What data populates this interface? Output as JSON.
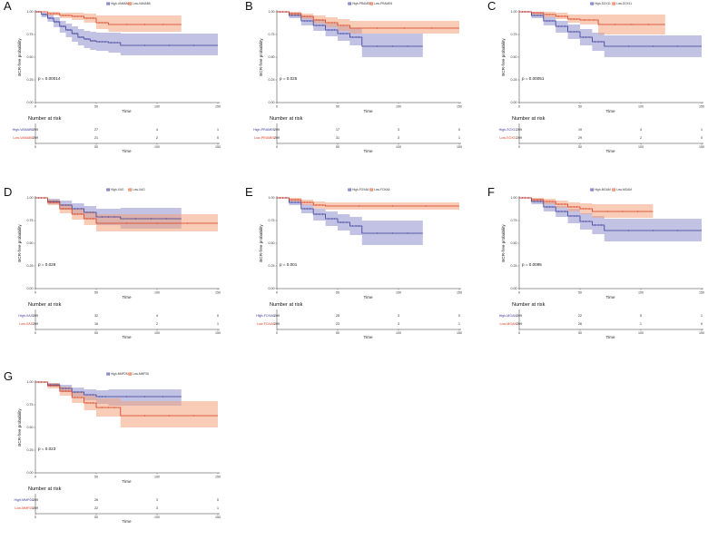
{
  "colors": {
    "high": "#3b3b98",
    "low": "#d93a1e",
    "high_band": "#8f8fce",
    "low_band": "#f2a27c"
  },
  "chart_data": [
    {
      "type": "line",
      "panel": "A",
      "ylabel": "BCR-free probability",
      "xlabel": "Time",
      "xlim": [
        0,
        150
      ],
      "ylim": [
        0,
        1
      ],
      "x_ticks": [
        "0",
        "50",
        "100",
        "150"
      ],
      "y_ticks": [
        "0.00",
        "0.25",
        "0.50",
        "0.75",
        "1.00"
      ],
      "legend": [
        "High-VAMAB6",
        "Low-VAMAB6"
      ],
      "pvalue": "p = 0.00014",
      "series": [
        {
          "name": "High-VAMAB6",
          "group": "high",
          "x": [
            0,
            5,
            10,
            15,
            20,
            25,
            30,
            35,
            40,
            45,
            50,
            60,
            70,
            150
          ],
          "y": [
            1,
            0.97,
            0.93,
            0.89,
            0.84,
            0.8,
            0.76,
            0.72,
            0.7,
            0.68,
            0.67,
            0.66,
            0.63,
            0.63
          ],
          "lower": [
            1,
            0.94,
            0.89,
            0.83,
            0.77,
            0.72,
            0.67,
            0.63,
            0.6,
            0.58,
            0.57,
            0.55,
            0.52,
            0.52
          ],
          "upper": [
            1,
            0.99,
            0.97,
            0.94,
            0.9,
            0.87,
            0.84,
            0.81,
            0.79,
            0.78,
            0.77,
            0.77,
            0.76,
            0.76
          ]
        },
        {
          "name": "Low-VAMAB6",
          "group": "low",
          "x": [
            0,
            10,
            20,
            30,
            40,
            50,
            60,
            120
          ],
          "y": [
            1,
            0.98,
            0.96,
            0.95,
            0.93,
            0.88,
            0.86,
            0.86
          ],
          "lower": [
            1,
            0.96,
            0.93,
            0.91,
            0.88,
            0.81,
            0.78,
            0.78
          ],
          "upper": [
            1,
            1,
            0.99,
            0.99,
            0.98,
            0.96,
            0.96,
            0.96
          ]
        }
      ],
      "risk_table": {
        "title": "Number at risk",
        "rows": [
          {
            "label": "High-VAMAB6",
            "group": "high",
            "values": [
              "209",
              "27",
              "4",
              "1"
            ]
          },
          {
            "label": "Low-VAMAB6",
            "group": "low",
            "values": [
              "209",
              "21",
              "2",
              "0"
            ]
          }
        ],
        "x_ticks": [
          "0",
          "50",
          "100",
          "150"
        ],
        "xlabel": "Time"
      }
    },
    {
      "type": "line",
      "panel": "B",
      "ylabel": "BCR-free probability",
      "xlabel": "Time",
      "xlim": [
        0,
        150
      ],
      "ylim": [
        0,
        1
      ],
      "x_ticks": [
        "0",
        "50",
        "100",
        "150"
      ],
      "y_ticks": [
        "0.00",
        "0.25",
        "0.50",
        "0.75",
        "1.00"
      ],
      "legend": [
        "High-PRAME6",
        "Low-PRAME6"
      ],
      "pvalue": "p = 0.025",
      "series": [
        {
          "name": "High-PRAME6",
          "group": "high",
          "x": [
            0,
            10,
            20,
            30,
            40,
            50,
            60,
            70,
            120
          ],
          "y": [
            1,
            0.96,
            0.9,
            0.85,
            0.8,
            0.76,
            0.72,
            0.62,
            0.62
          ],
          "lower": [
            1,
            0.93,
            0.85,
            0.79,
            0.73,
            0.68,
            0.63,
            0.5,
            0.5
          ],
          "upper": [
            1,
            0.99,
            0.95,
            0.91,
            0.87,
            0.84,
            0.82,
            0.76,
            0.76
          ]
        },
        {
          "name": "Low-PRAME6",
          "group": "low",
          "x": [
            0,
            10,
            20,
            30,
            40,
            50,
            60,
            150
          ],
          "y": [
            1,
            0.98,
            0.95,
            0.91,
            0.88,
            0.85,
            0.82,
            0.82
          ],
          "lower": [
            1,
            0.96,
            0.92,
            0.87,
            0.83,
            0.79,
            0.76,
            0.75
          ],
          "upper": [
            1,
            1,
            0.98,
            0.96,
            0.94,
            0.92,
            0.9,
            0.89
          ]
        }
      ],
      "risk_table": {
        "title": "Number at risk",
        "rows": [
          {
            "label": "High-PRAME6",
            "group": "high",
            "values": [
              "209",
              "17",
              "3",
              "0"
            ]
          },
          {
            "label": "Low-PRAME6",
            "group": "low",
            "values": [
              "209",
              "31",
              "3",
              "1"
            ]
          }
        ],
        "x_ticks": [
          "0",
          "50",
          "100",
          "150"
        ],
        "xlabel": "Time"
      }
    },
    {
      "type": "line",
      "panel": "C",
      "ylabel": "BCR-free probability",
      "xlabel": "Time",
      "xlim": [
        0,
        150
      ],
      "ylim": [
        0,
        1
      ],
      "x_ticks": [
        "0",
        "50",
        "100",
        "150"
      ],
      "y_ticks": [
        "0.00",
        "0.25",
        "0.50",
        "0.75",
        "1.00"
      ],
      "legend": [
        "High-SOX11",
        "Low-SOX11"
      ],
      "pvalue": "p = 0.00051",
      "series": [
        {
          "name": "High-SOX11",
          "group": "high",
          "x": [
            0,
            10,
            20,
            30,
            40,
            50,
            60,
            70,
            150
          ],
          "y": [
            1,
            0.96,
            0.9,
            0.84,
            0.78,
            0.72,
            0.67,
            0.62,
            0.62
          ],
          "lower": [
            1,
            0.93,
            0.85,
            0.77,
            0.7,
            0.63,
            0.57,
            0.5,
            0.5
          ],
          "upper": [
            1,
            0.99,
            0.95,
            0.9,
            0.86,
            0.81,
            0.77,
            0.74,
            0.74
          ]
        },
        {
          "name": "Low-SOX11",
          "group": "low",
          "x": [
            0,
            10,
            20,
            30,
            40,
            50,
            65,
            120
          ],
          "y": [
            1,
            0.99,
            0.97,
            0.95,
            0.92,
            0.91,
            0.86,
            0.86
          ],
          "lower": [
            1,
            0.97,
            0.94,
            0.92,
            0.88,
            0.86,
            0.75,
            0.75
          ],
          "upper": [
            1,
            1,
            1,
            0.99,
            0.97,
            0.97,
            0.97,
            0.97
          ]
        }
      ],
      "risk_table": {
        "title": "Number at risk",
        "rows": [
          {
            "label": "High-SOX11",
            "group": "high",
            "values": [
              "209",
              "19",
              "4",
              "1"
            ]
          },
          {
            "label": "Low-SOX11",
            "group": "low",
            "values": [
              "209",
              "29",
              "2",
              "0"
            ]
          }
        ],
        "x_ticks": [
          "0",
          "50",
          "100",
          "150"
        ],
        "xlabel": "Time"
      }
    },
    {
      "type": "line",
      "panel": "D",
      "ylabel": "BCR-free probability",
      "xlabel": "Time",
      "xlim": [
        0,
        150
      ],
      "ylim": [
        0,
        1
      ],
      "x_ticks": [
        "0",
        "50",
        "100",
        "150"
      ],
      "y_ticks": [
        "0.00",
        "0.25",
        "0.50",
        "0.75",
        "1.00"
      ],
      "legend": [
        "High-XAG",
        "Low-XAG"
      ],
      "pvalue": "p = 0.029",
      "series": [
        {
          "name": "High-XAG",
          "group": "high",
          "x": [
            0,
            10,
            20,
            30,
            40,
            50,
            70,
            120
          ],
          "y": [
            1,
            0.96,
            0.92,
            0.88,
            0.84,
            0.79,
            0.77,
            0.77
          ],
          "lower": [
            1,
            0.93,
            0.87,
            0.82,
            0.77,
            0.7,
            0.66,
            0.66
          ],
          "upper": [
            1,
            0.99,
            0.97,
            0.94,
            0.91,
            0.88,
            0.89,
            0.89
          ]
        },
        {
          "name": "Low-XAG",
          "group": "low",
          "x": [
            0,
            10,
            20,
            30,
            40,
            50,
            150
          ],
          "y": [
            1,
            0.95,
            0.88,
            0.82,
            0.77,
            0.72,
            0.72
          ],
          "lower": [
            1,
            0.92,
            0.83,
            0.76,
            0.7,
            0.63,
            0.63
          ],
          "upper": [
            1,
            0.98,
            0.93,
            0.88,
            0.85,
            0.82,
            0.82
          ]
        }
      ],
      "risk_table": {
        "title": "Number at risk",
        "rows": [
          {
            "label": "High-XAG",
            "group": "high",
            "values": [
              "209",
              "32",
              "4",
              "0"
            ]
          },
          {
            "label": "Low-XAG",
            "group": "low",
            "values": [
              "209",
              "16",
              "2",
              "1"
            ]
          }
        ],
        "x_ticks": [
          "0",
          "50",
          "100",
          "150"
        ],
        "xlabel": "Time"
      }
    },
    {
      "type": "line",
      "panel": "E",
      "ylabel": "BCR-free probability",
      "xlabel": "Time",
      "xlim": [
        0,
        150
      ],
      "ylim": [
        0,
        1
      ],
      "x_ticks": [
        "0",
        "50",
        "100",
        "150"
      ],
      "y_ticks": [
        "0.00",
        "0.25",
        "0.50",
        "0.75",
        "1.00"
      ],
      "legend": [
        "High-FOXA6",
        "Low-FOXA6"
      ],
      "pvalue": "p = 0.001",
      "series": [
        {
          "name": "High-FOXA6",
          "group": "high",
          "x": [
            0,
            10,
            20,
            30,
            40,
            50,
            60,
            70,
            120
          ],
          "y": [
            1,
            0.95,
            0.88,
            0.82,
            0.77,
            0.73,
            0.69,
            0.61,
            0.61
          ],
          "lower": [
            1,
            0.92,
            0.83,
            0.75,
            0.69,
            0.64,
            0.59,
            0.48,
            0.48
          ],
          "upper": [
            1,
            0.98,
            0.93,
            0.88,
            0.85,
            0.82,
            0.79,
            0.75,
            0.75
          ]
        },
        {
          "name": "Low-FOXA6",
          "group": "low",
          "x": [
            0,
            10,
            20,
            30,
            40,
            150
          ],
          "y": [
            1,
            0.98,
            0.95,
            0.92,
            0.91,
            0.91
          ],
          "lower": [
            1,
            0.96,
            0.92,
            0.88,
            0.87,
            0.87
          ],
          "upper": [
            1,
            1,
            0.98,
            0.96,
            0.95,
            0.95
          ]
        }
      ],
      "risk_table": {
        "title": "Number at risk",
        "rows": [
          {
            "label": "High-FOXA6",
            "group": "high",
            "values": [
              "209",
              "25",
              "3",
              "0"
            ]
          },
          {
            "label": "Low-FOXA6",
            "group": "low",
            "values": [
              "209",
              "23",
              "3",
              "1"
            ]
          }
        ],
        "x_ticks": [
          "0",
          "50",
          "100",
          "150"
        ],
        "xlabel": "Time"
      }
    },
    {
      "type": "line",
      "panel": "F",
      "ylabel": "BCR-free probability",
      "xlabel": "Time",
      "xlim": [
        0,
        150
      ],
      "ylim": [
        0,
        1
      ],
      "x_ticks": [
        "0",
        "50",
        "100",
        "150"
      ],
      "y_ticks": [
        "0.00",
        "0.25",
        "0.50",
        "0.75",
        "1.00"
      ],
      "legend": [
        "High-MGAM",
        "Low-MGAM"
      ],
      "pvalue": "p = 0.0095",
      "series": [
        {
          "name": "High-MGAM",
          "group": "high",
          "x": [
            0,
            10,
            20,
            30,
            40,
            50,
            60,
            70,
            150
          ],
          "y": [
            1,
            0.96,
            0.9,
            0.85,
            0.8,
            0.74,
            0.7,
            0.64,
            0.64
          ],
          "lower": [
            1,
            0.93,
            0.85,
            0.79,
            0.72,
            0.65,
            0.6,
            0.52,
            0.52
          ],
          "upper": [
            1,
            0.99,
            0.95,
            0.91,
            0.88,
            0.83,
            0.8,
            0.77,
            0.77
          ]
        },
        {
          "name": "Low-MGAM",
          "group": "low",
          "x": [
            0,
            10,
            20,
            30,
            40,
            50,
            60,
            110
          ],
          "y": [
            1,
            0.98,
            0.96,
            0.93,
            0.9,
            0.88,
            0.85,
            0.85
          ],
          "lower": [
            1,
            0.96,
            0.93,
            0.89,
            0.85,
            0.82,
            0.78,
            0.78
          ],
          "upper": [
            1,
            1,
            0.99,
            0.97,
            0.95,
            0.94,
            0.93,
            0.93
          ]
        }
      ],
      "risk_table": {
        "title": "Number at risk",
        "rows": [
          {
            "label": "High-MGAM",
            "group": "high",
            "values": [
              "209",
              "22",
              "5",
              "1"
            ]
          },
          {
            "label": "Low-MGAM",
            "group": "low",
            "values": [
              "209",
              "26",
              "1",
              "0"
            ]
          }
        ],
        "x_ticks": [
          "0",
          "50",
          "100",
          "150"
        ],
        "xlabel": "Time"
      }
    },
    {
      "type": "line",
      "panel": "G",
      "ylabel": "BCR-free probability",
      "xlabel": "Time",
      "xlim": [
        0,
        150
      ],
      "ylim": [
        0,
        1
      ],
      "x_ticks": [
        "0",
        "50",
        "100",
        "150"
      ],
      "y_ticks": [
        "0.00",
        "0.25",
        "0.50",
        "0.75",
        "1.00"
      ],
      "legend": [
        "High-MMP26",
        "Low-MMP26"
      ],
      "pvalue": "p = 0.023",
      "series": [
        {
          "name": "High-MMP26",
          "group": "high",
          "x": [
            0,
            10,
            20,
            30,
            40,
            50,
            60,
            120
          ],
          "y": [
            1,
            0.97,
            0.93,
            0.89,
            0.86,
            0.84,
            0.84,
            0.84
          ],
          "lower": [
            1,
            0.95,
            0.89,
            0.84,
            0.8,
            0.76,
            0.74,
            0.74
          ],
          "upper": [
            1,
            0.99,
            0.97,
            0.94,
            0.92,
            0.91,
            0.92,
            0.92
          ]
        },
        {
          "name": "Low-MMP26",
          "group": "low",
          "x": [
            0,
            10,
            20,
            30,
            40,
            50,
            70,
            150
          ],
          "y": [
            1,
            0.96,
            0.9,
            0.83,
            0.77,
            0.72,
            0.63,
            0.63
          ],
          "lower": [
            1,
            0.93,
            0.85,
            0.77,
            0.69,
            0.62,
            0.5,
            0.5
          ],
          "upper": [
            1,
            0.99,
            0.95,
            0.89,
            0.85,
            0.82,
            0.79,
            0.79
          ]
        }
      ],
      "risk_table": {
        "title": "Number at risk",
        "rows": [
          {
            "label": "High-MMP26",
            "group": "high",
            "values": [
              "209",
              "26",
              "3",
              "0"
            ]
          },
          {
            "label": "Low-MMP26",
            "group": "low",
            "values": [
              "209",
              "22",
              "3",
              "1"
            ]
          }
        ],
        "x_ticks": [
          "0",
          "50",
          "100",
          "150"
        ],
        "xlabel": "Time"
      }
    }
  ]
}
